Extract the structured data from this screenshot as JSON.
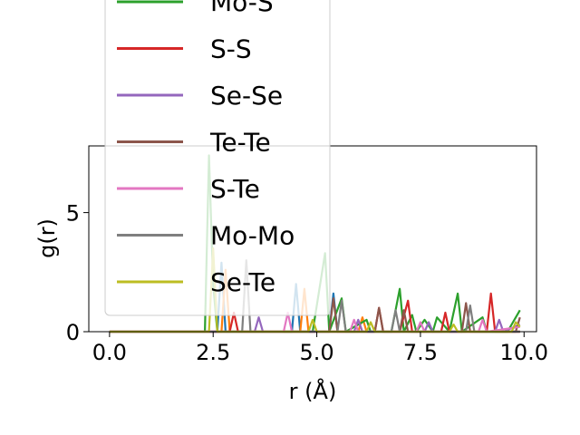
{
  "chart_data": {
    "type": "line",
    "xlabel": "r (Å)",
    "ylabel": "g(r)",
    "xlim": [
      -0.5,
      10.3
    ],
    "ylim": [
      0,
      7.8
    ],
    "xticks": [
      0.0,
      2.5,
      5.0,
      7.5,
      10.0
    ],
    "xtick_labels": [
      "0.0",
      "2.5",
      "5.0",
      "7.5",
      "10.0"
    ],
    "yticks": [
      0,
      5
    ],
    "ytick_labels": [
      "0",
      "5"
    ],
    "legend_position": "upper-left",
    "series": [
      {
        "name": "Mo-S",
        "color": "#2ca02c",
        "x": [
          0,
          2.0,
          2.3,
          2.4,
          2.5,
          2.6,
          3.0,
          4.0,
          4.9,
          5.2,
          5.3,
          5.6,
          5.7,
          6.2,
          6.3,
          6.8,
          7.0,
          7.1,
          7.3,
          7.4,
          7.6,
          7.8,
          7.9,
          8.2,
          8.4,
          8.5,
          9.0,
          9.1,
          9.6,
          9.9
        ],
        "y": [
          0,
          0,
          0,
          7.4,
          2.0,
          0,
          0,
          0,
          0,
          3.3,
          0,
          1.4,
          0,
          0.5,
          0,
          0,
          1.8,
          0,
          0.7,
          0,
          0.5,
          0,
          0.6,
          0,
          1.6,
          0,
          0.6,
          0,
          0,
          0.9
        ]
      },
      {
        "name": "S-S",
        "color": "#d62728",
        "x": [
          0,
          2.9,
          3.0,
          3.1,
          6.4,
          6.5,
          6.6,
          7.0,
          7.2,
          7.3,
          8.0,
          8.1,
          8.2,
          9.1,
          9.2,
          9.3,
          9.9
        ],
        "y": [
          0,
          0,
          0.8,
          0,
          0,
          1.0,
          0,
          0,
          1.3,
          0,
          0,
          0.8,
          0,
          0,
          1.6,
          0,
          0
        ]
      },
      {
        "name": "Se-Se",
        "color": "#9467bd",
        "x": [
          0,
          3.5,
          3.6,
          3.7,
          5.9,
          6.0,
          6.1,
          7.6,
          7.7,
          7.8,
          9.3,
          9.4,
          9.5,
          9.9
        ],
        "y": [
          0,
          0,
          0.6,
          0,
          0,
          0.5,
          0,
          0,
          0.4,
          0,
          0,
          0.5,
          0,
          0.3
        ]
      },
      {
        "name": "Te-Te",
        "color": "#8c564b",
        "x": [
          0,
          5.3,
          5.4,
          5.5,
          6.4,
          6.5,
          6.6,
          7.0,
          7.1,
          7.2,
          8.5,
          8.6,
          8.7,
          9.8,
          9.9
        ],
        "y": [
          0,
          0,
          1.4,
          0,
          0,
          1.0,
          0,
          0,
          0.9,
          0,
          0,
          1.2,
          0,
          0,
          0.6
        ]
      },
      {
        "name": "S-Te",
        "color": "#e377c2",
        "x": [
          0,
          4.2,
          4.3,
          4.4,
          5.8,
          5.9,
          6.0,
          7.4,
          7.5,
          7.6,
          8.9,
          9.0,
          9.1,
          9.9
        ],
        "y": [
          0,
          0,
          0.8,
          0,
          0,
          0.5,
          0,
          0,
          0.4,
          0,
          0,
          0.5,
          0,
          0.2
        ]
      },
      {
        "name": "Mo-Mo",
        "color": "#7f7f7f",
        "x": [
          0,
          3.2,
          3.3,
          3.4,
          5.5,
          5.6,
          5.7,
          6.8,
          6.9,
          7.0,
          8.6,
          8.7,
          8.8,
          9.9
        ],
        "y": [
          0,
          0,
          3.0,
          0,
          0,
          1.3,
          0,
          0,
          0.9,
          0,
          0,
          1.1,
          0,
          0
        ]
      },
      {
        "name": "Se-Te",
        "color": "#bcbd22",
        "x": [
          0,
          2.4,
          2.5,
          2.6,
          4.8,
          4.9,
          5.0,
          6.2,
          6.3,
          6.4,
          8.2,
          8.3,
          8.4,
          9.7,
          9.8,
          9.9
        ],
        "y": [
          0,
          0,
          3.5,
          0,
          0,
          0.5,
          0,
          0,
          0.4,
          0,
          0,
          0.3,
          0,
          0,
          0.4,
          0.2
        ]
      }
    ],
    "hidden_series": [
      {
        "color": "#1f77b4",
        "x": [
          0,
          2.6,
          2.7,
          2.8,
          4.4,
          4.5,
          4.6,
          5.3,
          5.4,
          5.5,
          9.9
        ],
        "y": [
          0,
          0,
          2.9,
          0,
          0,
          2.0,
          0,
          0,
          1.6,
          0,
          0
        ]
      },
      {
        "color": "#ff7f0e",
        "x": [
          0,
          2.7,
          2.8,
          2.9,
          4.6,
          4.7,
          4.8,
          6.0,
          6.1,
          6.2,
          9.9
        ],
        "y": [
          0,
          0,
          2.6,
          0,
          0,
          1.8,
          0,
          0,
          0.6,
          0,
          0
        ]
      }
    ]
  }
}
